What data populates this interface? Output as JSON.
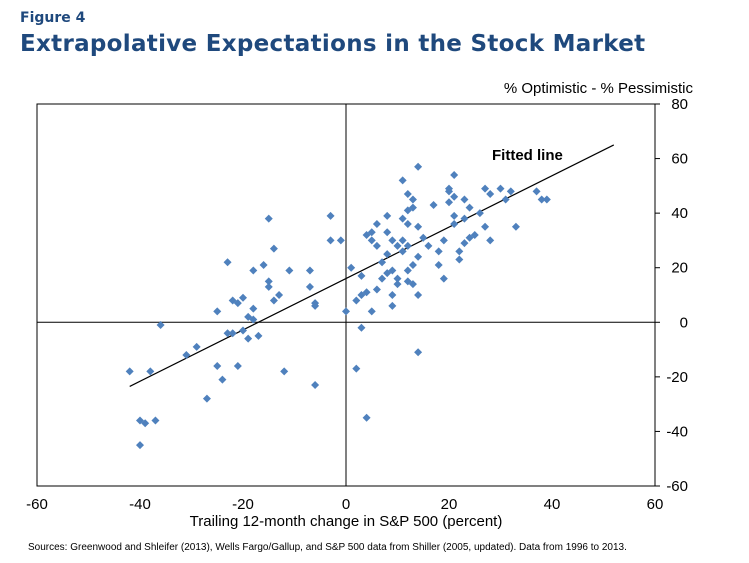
{
  "figure_label": "Figure 4",
  "title": "Extrapolative Expectations in the Stock Market",
  "source_note": "Sources: Greenwood and Shleifer (2013), Wells Fargo/Gallup, and S&P 500 data from Shiller (2005, updated). Data from 1996 to 2013.",
  "colors": {
    "title": "#1f497d",
    "marker": "#4f81bd",
    "axis": "#000000"
  },
  "chart_data": {
    "type": "scatter",
    "title": "Extrapolative Expectations in the Stock Market",
    "xlabel": "Trailing 12-month change in S&P 500 (percent)",
    "ylabel": "% Optimistic - % Pessimistic",
    "xlim": [
      -60,
      60
    ],
    "ylim": [
      -60,
      80
    ],
    "x_ticks": [
      -60,
      -40,
      -20,
      0,
      20,
      40,
      60
    ],
    "y_ticks": [
      -60,
      -40,
      -20,
      0,
      20,
      40,
      60,
      80
    ],
    "fitted_line": {
      "label": "Fitted line",
      "x": [
        -42,
        52
      ],
      "y": [
        -23.5,
        65
      ]
    },
    "series": [
      {
        "name": "Observations",
        "points": [
          [
            -42,
            -18
          ],
          [
            -40,
            -36
          ],
          [
            -39,
            -37
          ],
          [
            -40,
            -45
          ],
          [
            -38,
            -18
          ],
          [
            -37,
            -36
          ],
          [
            -36,
            -1
          ],
          [
            -31,
            -12
          ],
          [
            -29,
            -9
          ],
          [
            -27,
            -28
          ],
          [
            -25,
            4
          ],
          [
            -25,
            -16
          ],
          [
            -24,
            -21
          ],
          [
            -23,
            22
          ],
          [
            -23,
            -4
          ],
          [
            -22,
            -4
          ],
          [
            -22,
            8
          ],
          [
            -21,
            7
          ],
          [
            -21,
            -16
          ],
          [
            -20,
            9
          ],
          [
            -20,
            -3
          ],
          [
            -19,
            -6
          ],
          [
            -19,
            2
          ],
          [
            -18,
            5
          ],
          [
            -18,
            19
          ],
          [
            -18,
            1
          ],
          [
            -17,
            -5
          ],
          [
            -16,
            21
          ],
          [
            -15,
            15
          ],
          [
            -15,
            13
          ],
          [
            -15,
            38
          ],
          [
            -14,
            27
          ],
          [
            -14,
            8
          ],
          [
            -13,
            10
          ],
          [
            -12,
            -18
          ],
          [
            -11,
            19
          ],
          [
            -7,
            19
          ],
          [
            -7,
            13
          ],
          [
            -6,
            7
          ],
          [
            -6,
            6
          ],
          [
            -6,
            -23
          ],
          [
            -3,
            39
          ],
          [
            -3,
            30
          ],
          [
            -1,
            30
          ],
          [
            0,
            4
          ],
          [
            1,
            20
          ],
          [
            2,
            8
          ],
          [
            2,
            -17
          ],
          [
            3,
            17
          ],
          [
            3,
            -2
          ],
          [
            3,
            10
          ],
          [
            4,
            11
          ],
          [
            4,
            32
          ],
          [
            4,
            -35
          ],
          [
            5,
            33
          ],
          [
            5,
            4
          ],
          [
            5,
            30
          ],
          [
            6,
            12
          ],
          [
            6,
            28
          ],
          [
            6,
            36
          ],
          [
            7,
            22
          ],
          [
            7,
            16
          ],
          [
            8,
            39
          ],
          [
            8,
            33
          ],
          [
            8,
            25
          ],
          [
            8,
            18
          ],
          [
            9,
            30
          ],
          [
            9,
            19
          ],
          [
            9,
            10
          ],
          [
            9,
            6
          ],
          [
            10,
            28
          ],
          [
            10,
            14
          ],
          [
            10,
            16
          ],
          [
            11,
            38
          ],
          [
            11,
            30
          ],
          [
            11,
            26
          ],
          [
            11,
            52
          ],
          [
            12,
            47
          ],
          [
            12,
            41
          ],
          [
            12,
            36
          ],
          [
            12,
            28
          ],
          [
            12,
            19
          ],
          [
            12,
            15
          ],
          [
            13,
            42
          ],
          [
            13,
            45
          ],
          [
            13,
            21
          ],
          [
            13,
            14
          ],
          [
            14,
            57
          ],
          [
            14,
            35
          ],
          [
            14,
            24
          ],
          [
            14,
            10
          ],
          [
            14,
            -11
          ],
          [
            15,
            31
          ],
          [
            16,
            28
          ],
          [
            17,
            43
          ],
          [
            18,
            21
          ],
          [
            18,
            26
          ],
          [
            19,
            16
          ],
          [
            19,
            30
          ],
          [
            20,
            44
          ],
          [
            20,
            48
          ],
          [
            20,
            49
          ],
          [
            21,
            54
          ],
          [
            21,
            46
          ],
          [
            21,
            36
          ],
          [
            21,
            39
          ],
          [
            22,
            26
          ],
          [
            22,
            23
          ],
          [
            23,
            29
          ],
          [
            23,
            38
          ],
          [
            23,
            45
          ],
          [
            24,
            42
          ],
          [
            24,
            31
          ],
          [
            25,
            32
          ],
          [
            26,
            40
          ],
          [
            27,
            35
          ],
          [
            27,
            49
          ],
          [
            28,
            47
          ],
          [
            28,
            30
          ],
          [
            30,
            49
          ],
          [
            31,
            45
          ],
          [
            32,
            48
          ],
          [
            33,
            35
          ],
          [
            37,
            48
          ],
          [
            38,
            45
          ],
          [
            39,
            45
          ]
        ]
      }
    ]
  }
}
